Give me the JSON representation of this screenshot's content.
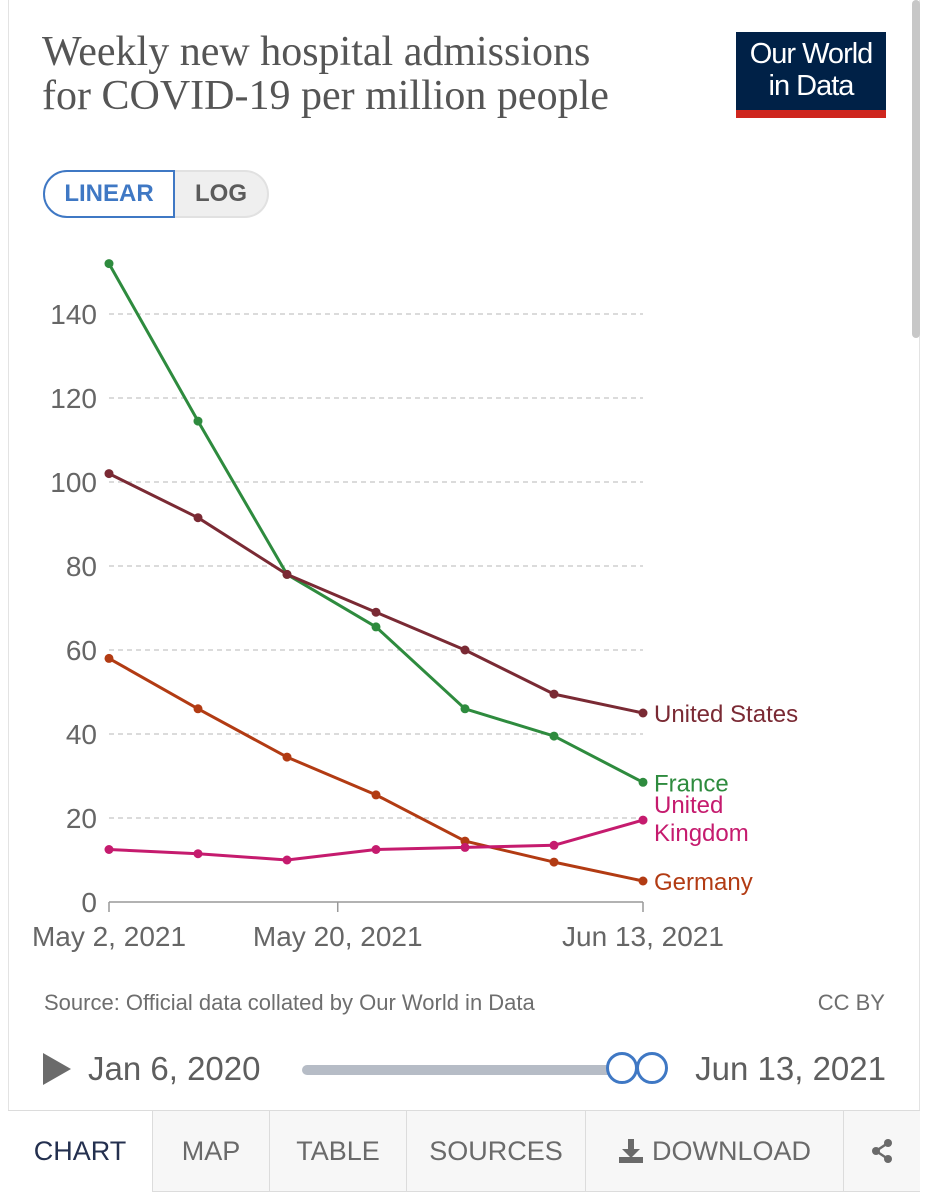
{
  "header": {
    "title_line1": "Weekly new hospital admissions",
    "title_line2": "for COVID-19 per million people",
    "logo_line1": "Our World",
    "logo_line2": "in Data"
  },
  "scale_toggle": {
    "linear_label": "LINEAR",
    "log_label": "LOG",
    "selected": "LINEAR"
  },
  "chart_data": {
    "type": "line",
    "title": "Weekly new hospital admissions for COVID-19 per million people",
    "xlabel": "",
    "ylabel": "",
    "ylim": [
      0,
      150
    ],
    "yticks": [
      0,
      20,
      40,
      60,
      80,
      100,
      120,
      140
    ],
    "x": [
      "2021-05-02",
      "2021-05-09",
      "2021-05-16",
      "2021-05-23",
      "2021-05-30",
      "2021-06-06",
      "2021-06-13"
    ],
    "xticks": [
      {
        "index": 0,
        "label": "May 2, 2021"
      },
      {
        "index": 2.57,
        "label": "May 20, 2021"
      },
      {
        "index": 6,
        "label": "Jun 13, 2021"
      }
    ],
    "grid": true,
    "series": [
      {
        "name": "France",
        "label_lines": [
          "France"
        ],
        "color": "#2e8b3e",
        "values": [
          152,
          114.5,
          78,
          65.5,
          46,
          39.5,
          28.5
        ]
      },
      {
        "name": "United States",
        "label_lines": [
          "United States"
        ],
        "color": "#7a2a34",
        "values": [
          102,
          91.5,
          78,
          69,
          60,
          49.5,
          45
        ]
      },
      {
        "name": "Germany",
        "label_lines": [
          "Germany"
        ],
        "color": "#b23b13",
        "values": [
          58,
          46,
          34.5,
          25.5,
          14.5,
          9.5,
          5
        ]
      },
      {
        "name": "United Kingdom",
        "label_lines": [
          "United",
          "Kingdom"
        ],
        "color": "#c51b6e",
        "values": [
          12.5,
          11.5,
          10,
          12.5,
          13,
          13.5,
          19.5
        ]
      }
    ]
  },
  "footer": {
    "source": "Source: Official data collated by Our World in Data",
    "license": "CC BY"
  },
  "timeline": {
    "start_label": "Jan 6, 2020",
    "end_label": "Jun 13, 2021"
  },
  "tabs": {
    "chart": "CHART",
    "map": "MAP",
    "table": "TABLE",
    "sources": "SOURCES",
    "download": "DOWNLOAD"
  },
  "colors": {
    "accent": "#3f78c4",
    "logo_bg": "#002147",
    "logo_bar": "#ce261e",
    "gridline": "#cfcfcf",
    "axis_text": "#666666"
  }
}
